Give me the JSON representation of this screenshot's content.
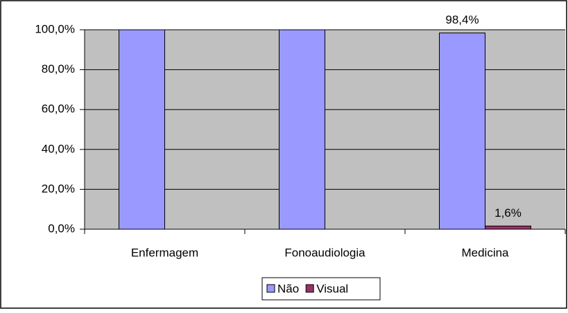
{
  "chart_data": {
    "type": "bar",
    "categories": [
      "Enfermagem",
      "Fonoaudiologia",
      "Medicina"
    ],
    "series": [
      {
        "name": "Não",
        "color": "#9999ff",
        "values": [
          100,
          100,
          98.4
        ],
        "value_labels": [
          null,
          null,
          "98,4%"
        ]
      },
      {
        "name": "Visual",
        "color": "#993366",
        "values": [
          0,
          0,
          1.6
        ],
        "value_labels": [
          null,
          null,
          "1,6%"
        ]
      }
    ],
    "ylim": [
      0,
      100
    ],
    "yticks": [
      {
        "value": 0,
        "label": "0,0%"
      },
      {
        "value": 20,
        "label": "20,0%"
      },
      {
        "value": 40,
        "label": "40,0%"
      },
      {
        "value": 60,
        "label": "60,0%"
      },
      {
        "value": 80,
        "label": "80,0%"
      },
      {
        "value": 100,
        "label": "100,0%"
      }
    ],
    "grid": true,
    "legend": "bottom"
  }
}
